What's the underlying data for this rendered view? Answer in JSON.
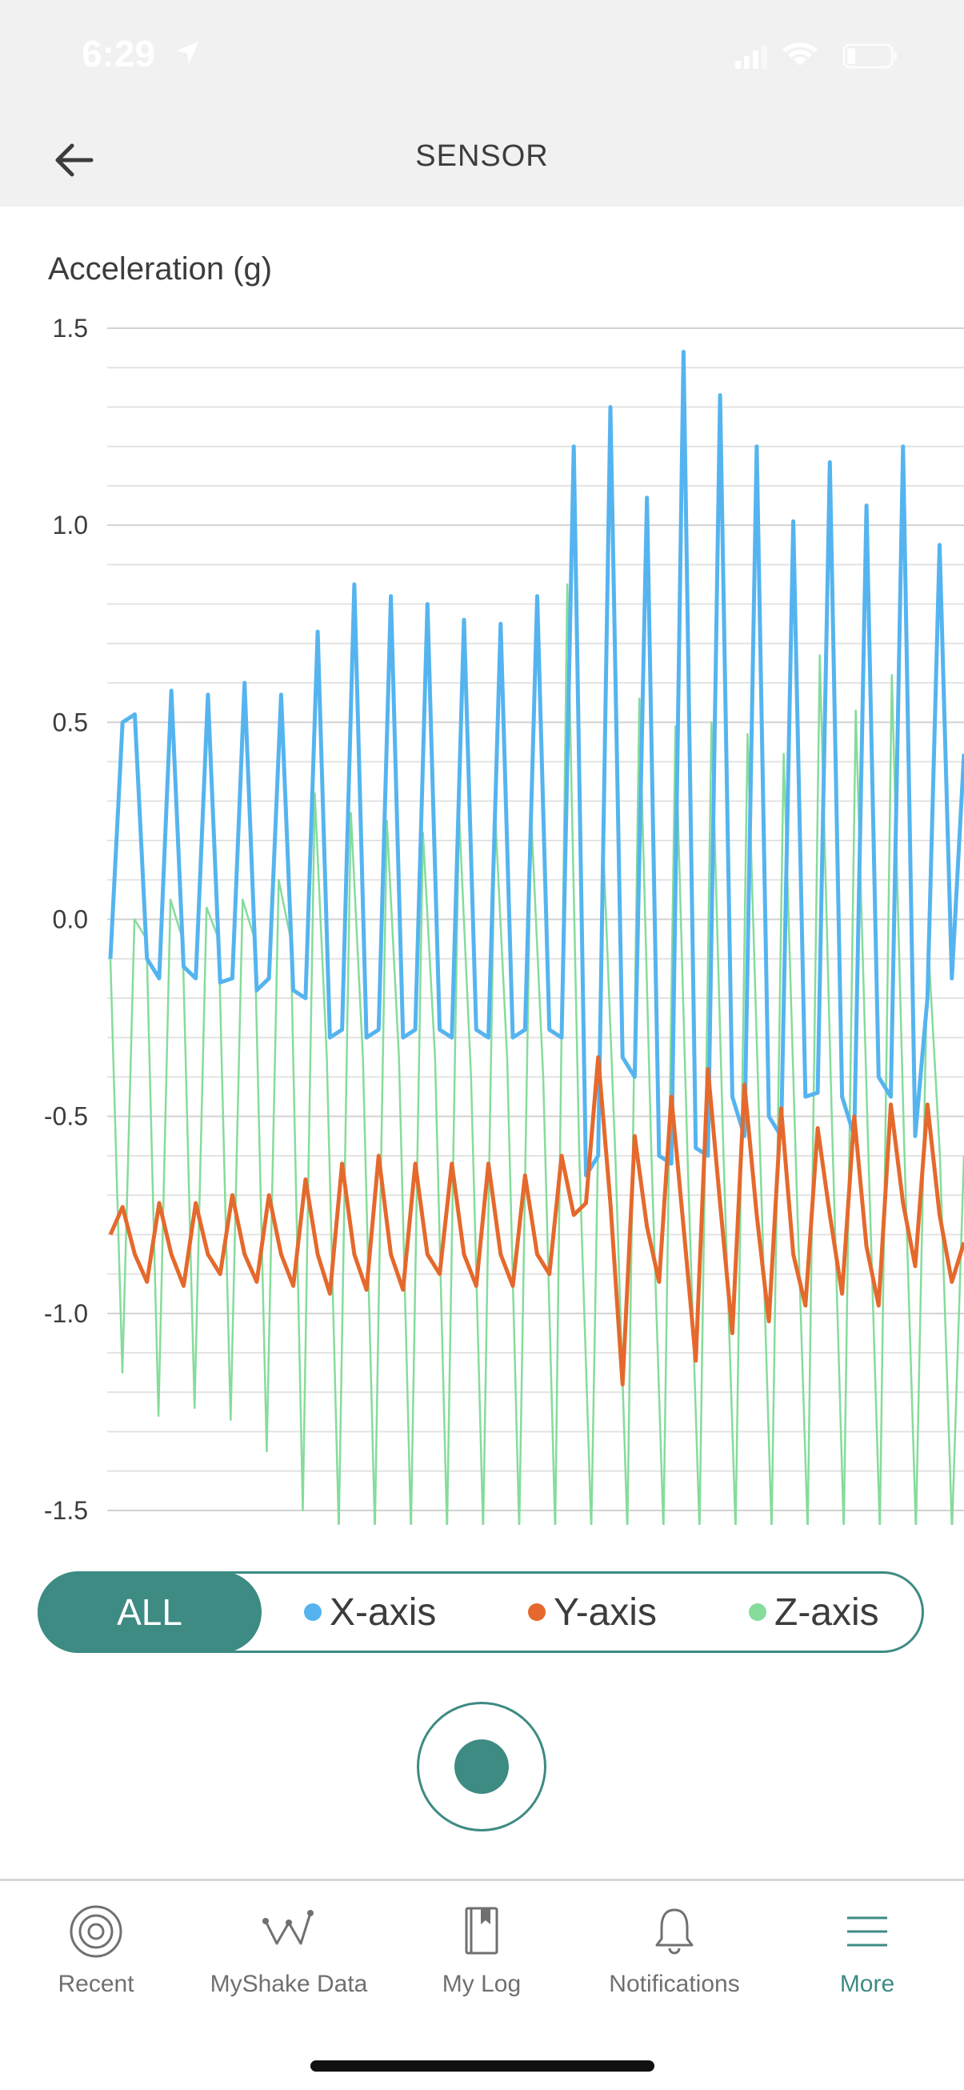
{
  "status": {
    "time": "6:29"
  },
  "header": {
    "title": "SENSOR"
  },
  "chart_title": "Acceleration (g)",
  "chart_data": {
    "type": "line",
    "ylabel": "Acceleration (g)",
    "ylim": [
      -1.5,
      1.5
    ],
    "yticks": [
      "1.5",
      "1.0",
      "0.5",
      "0.0",
      "-0.5",
      "-1.0",
      "-1.5"
    ],
    "grid": true,
    "series": [
      {
        "name": "X-axis",
        "color": "#55b4ef",
        "values": [
          -0.1,
          0.5,
          0.52,
          -0.1,
          -0.15,
          0.58,
          -0.12,
          -0.15,
          0.57,
          -0.16,
          -0.15,
          0.6,
          -0.18,
          -0.15,
          0.57,
          -0.18,
          -0.2,
          0.73,
          -0.3,
          -0.28,
          0.85,
          -0.3,
          -0.28,
          0.82,
          -0.3,
          -0.28,
          0.8,
          -0.28,
          -0.3,
          0.76,
          -0.28,
          -0.3,
          0.75,
          -0.3,
          -0.28,
          0.82,
          -0.28,
          -0.3,
          1.2,
          -0.65,
          -0.6,
          1.3,
          -0.35,
          -0.4,
          1.07,
          -0.6,
          -0.62,
          1.44,
          -0.58,
          -0.6,
          1.33,
          -0.45,
          -0.55,
          1.2,
          -0.5,
          -0.55,
          1.01,
          -0.45,
          -0.44,
          1.16,
          -0.45,
          -0.55,
          1.05,
          -0.4,
          -0.45,
          1.2,
          -0.55,
          -0.2,
          0.95,
          -0.15,
          0.42
        ]
      },
      {
        "name": "Y-axis",
        "color": "#e5692c",
        "values": [
          -0.8,
          -0.73,
          -0.85,
          -0.92,
          -0.72,
          -0.85,
          -0.93,
          -0.72,
          -0.85,
          -0.9,
          -0.7,
          -0.85,
          -0.92,
          -0.7,
          -0.85,
          -0.93,
          -0.66,
          -0.85,
          -0.95,
          -0.62,
          -0.85,
          -0.94,
          -0.6,
          -0.85,
          -0.94,
          -0.62,
          -0.85,
          -0.9,
          -0.62,
          -0.85,
          -0.93,
          -0.62,
          -0.85,
          -0.93,
          -0.65,
          -0.85,
          -0.9,
          -0.6,
          -0.75,
          -0.72,
          -0.35,
          -0.72,
          -1.18,
          -0.55,
          -0.78,
          -0.92,
          -0.45,
          -0.78,
          -1.12,
          -0.38,
          -0.72,
          -1.05,
          -0.42,
          -0.75,
          -1.02,
          -0.48,
          -0.85,
          -0.98,
          -0.53,
          -0.75,
          -0.95,
          -0.5,
          -0.83,
          -0.98,
          -0.47,
          -0.72,
          -0.88,
          -0.47,
          -0.75,
          -0.92,
          -0.82
        ]
      },
      {
        "name": "Z-axis",
        "color": "#85dc9b",
        "values": [
          -0.1,
          -1.15,
          0.0,
          -0.05,
          -1.26,
          0.05,
          -0.05,
          -1.24,
          0.03,
          -0.05,
          -1.27,
          0.05,
          -0.05,
          -1.35,
          0.1,
          -0.05,
          -1.5,
          0.32,
          -0.35,
          -1.55,
          0.27,
          -0.35,
          -1.55,
          0.25,
          -0.35,
          -1.55,
          0.22,
          -0.35,
          -1.55,
          0.27,
          -0.4,
          -1.55,
          0.27,
          -0.35,
          -1.55,
          0.26,
          -0.4,
          -1.55,
          0.85,
          -0.6,
          -1.55,
          0.18,
          -0.6,
          -1.55,
          0.56,
          -0.6,
          -1.55,
          0.49,
          -0.6,
          -1.55,
          0.5,
          -0.6,
          -1.55,
          0.47,
          -0.55,
          -1.55,
          0.42,
          -0.6,
          -1.55,
          0.67,
          -0.5,
          -1.55,
          0.53,
          -0.55,
          -1.55,
          0.62,
          -0.55,
          -1.55,
          -0.05,
          -0.6,
          -1.55,
          -0.6
        ]
      }
    ]
  },
  "segmented": {
    "all": "ALL",
    "x": "X-axis",
    "y": "Y-axis",
    "z": "Z-axis"
  },
  "tabs": [
    {
      "label": "Recent",
      "icon": "recent-target-icon"
    },
    {
      "label": "MyShake Data",
      "icon": "wave-icon"
    },
    {
      "label": "My Log",
      "icon": "book-icon"
    },
    {
      "label": "Notifications",
      "icon": "bell-icon"
    },
    {
      "label": "More",
      "icon": "menu-icon",
      "active": true
    }
  ],
  "colors": {
    "accent": "#3d8b83",
    "x": "#55b4ef",
    "y": "#e5692c",
    "z": "#85dc9b"
  }
}
